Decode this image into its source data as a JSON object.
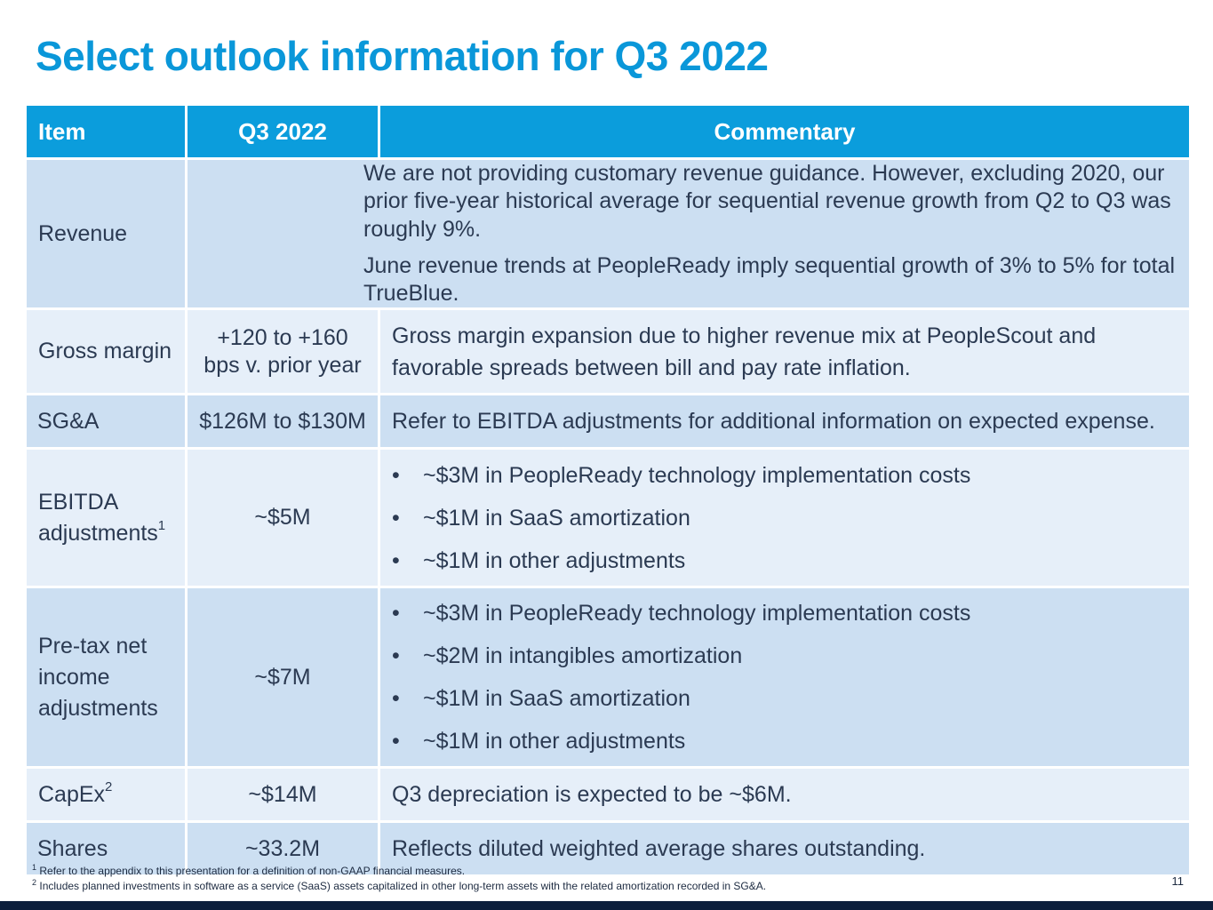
{
  "title": "Select outlook information for Q3 2022",
  "table": {
    "headers": [
      "Item",
      "Q3 2022",
      "Commentary"
    ],
    "rows": [
      {
        "item": "Revenue",
        "commentary": [
          "We are not providing customary revenue guidance. However, excluding 2020, our prior five-year historical average for sequential revenue growth from Q2 to Q3 was roughly 9%.",
          "June revenue trends at PeopleReady imply sequential growth of 3% to 5% for total TrueBlue."
        ]
      },
      {
        "item": "Gross margin",
        "q3_lines": [
          "+120 to +160",
          "bps v. prior year"
        ],
        "commentary_lines": [
          "Gross margin expansion due to higher revenue mix at PeopleScout and",
          "favorable spreads between bill and pay rate inflation."
        ]
      },
      {
        "item": "SG&A",
        "q3": "$126M to $130M",
        "commentary": "Refer to EBITDA adjustments for additional information on expected expense."
      },
      {
        "item_lines": [
          "EBITDA",
          "adjustments"
        ],
        "item_sup": "1",
        "q3": "~$5M",
        "bullets": [
          "~$3M in PeopleReady technology implementation costs",
          "~$1M in SaaS amortization",
          "~$1M in other adjustments"
        ]
      },
      {
        "item_lines": [
          "Pre-tax net",
          "income",
          "adjustments"
        ],
        "q3": "~$7M",
        "bullets": [
          "~$3M in PeopleReady technology implementation costs",
          "~$2M in intangibles amortization",
          "~$1M in SaaS amortization",
          "~$1M in other adjustments"
        ]
      },
      {
        "item": "CapEx",
        "item_sup": "2",
        "q3": "~$14M",
        "commentary": "Q3 depreciation is expected to be ~$6M."
      },
      {
        "item": "Shares",
        "q3": "~33.2M",
        "commentary": "Reflects diluted weighted average shares outstanding."
      }
    ]
  },
  "footnotes": [
    {
      "num": "1",
      "text": "Refer to the appendix to this presentation for a definition of non-GAAP financial measures."
    },
    {
      "num": "2",
      "text": "Includes planned investments in software as a service (SaaS) assets capitalized in other long-term assets with the related amortization recorded in SG&A."
    }
  ],
  "page_number": "11",
  "colors": {
    "title": "#0a97d9",
    "header_bg": "#0b9ddc",
    "row_dark": "#ccdff2",
    "row_light": "#e6eff9",
    "bottom_bar": "#0d1f3c"
  }
}
